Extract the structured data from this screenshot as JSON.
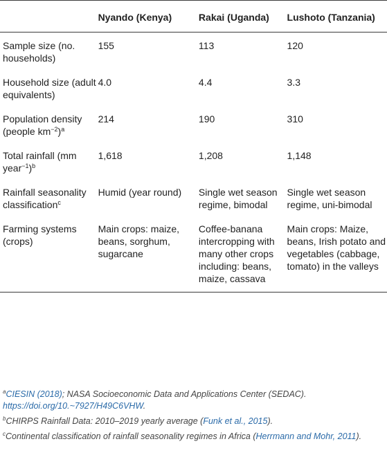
{
  "table": {
    "headers": [
      "",
      "Nyando (Kenya)",
      "Rakai (Uganda)",
      "Lushoto (Tanzania)"
    ],
    "rows": [
      {
        "label": "Sample size (no. households)",
        "label_sup": "",
        "label_tail": "",
        "cells": [
          "155",
          "113",
          "120"
        ]
      },
      {
        "label": "Household size (adult equivalents)",
        "label_sup": "",
        "label_tail": "",
        "cells": [
          "4.0",
          "4.4",
          "3.3"
        ]
      },
      {
        "label": "Population density (people km",
        "label_sup": "−2",
        "label_tail": ")",
        "label_mark": "a",
        "cells": [
          "214",
          "190",
          "310"
        ]
      },
      {
        "label": "Total rainfall (mm year",
        "label_sup": "−1",
        "label_tail": ")",
        "label_mark": "b",
        "cells": [
          "1,618",
          "1,208",
          "1,148"
        ]
      },
      {
        "label": "Rainfall seasonality classification",
        "label_sup": "",
        "label_tail": "",
        "label_mark": "c",
        "cells": [
          "Humid (year round)",
          "Single wet season regime, bimodal",
          "Single wet season regime, uni-bimodal"
        ]
      },
      {
        "label": "Farming systems (crops)",
        "label_sup": "",
        "label_tail": "",
        "cells": [
          "Main crops: maize, beans, sorghum, sugarcane",
          "Coffee-banana intercropping with many other crops including: beans, maize, cassava",
          "Main crops: Maize, beans, Irish potato and vegetables (cabbage, tomato) in the valleys"
        ]
      }
    ]
  },
  "footnotes": {
    "a": {
      "mark": "a",
      "cite": "CIESIN (2018)",
      "text": "; NASA Socioeconomic Data and Applications Center (SEDAC). ",
      "link": "https://doi.org/10.~7927/H49C6VHW",
      "end": "."
    },
    "b": {
      "mark": "b",
      "text": "CHIRPS Rainfall Data: 2010–2019 yearly average (",
      "cite": "Funk et al., 2015",
      "end": ")."
    },
    "c": {
      "mark": "c",
      "text": "Continental classification of rainfall seasonality regimes in Africa (",
      "cite": "Herrmann and Mohr, 2011",
      "end": ")."
    }
  }
}
